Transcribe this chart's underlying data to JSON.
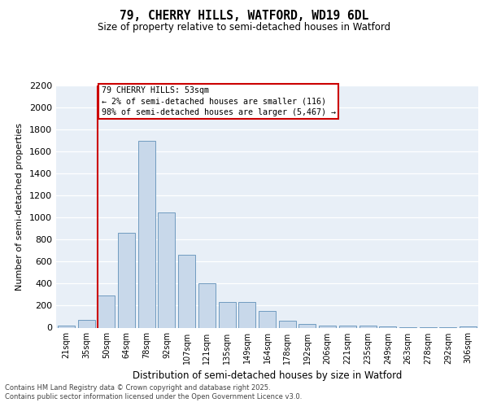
{
  "title1": "79, CHERRY HILLS, WATFORD, WD19 6DL",
  "title2": "Size of property relative to semi-detached houses in Watford",
  "xlabel": "Distribution of semi-detached houses by size in Watford",
  "ylabel": "Number of semi-detached properties",
  "bins": [
    "21sqm",
    "35sqm",
    "50sqm",
    "64sqm",
    "78sqm",
    "92sqm",
    "107sqm",
    "121sqm",
    "135sqm",
    "149sqm",
    "164sqm",
    "178sqm",
    "192sqm",
    "206sqm",
    "221sqm",
    "235sqm",
    "249sqm",
    "263sqm",
    "278sqm",
    "292sqm",
    "306sqm"
  ],
  "values": [
    20,
    70,
    290,
    860,
    1700,
    1050,
    660,
    400,
    230,
    230,
    155,
    65,
    30,
    20,
    15,
    15,
    10,
    5,
    2,
    2,
    10
  ],
  "bar_color": "#c8d8ea",
  "bar_edge_color": "#6090b8",
  "highlight_color": "#cc0000",
  "annotation_title": "79 CHERRY HILLS: 53sqm",
  "annotation_line1": "← 2% of semi-detached houses are smaller (116)",
  "annotation_line2": "98% of semi-detached houses are larger (5,467) →",
  "ylim": [
    0,
    2200
  ],
  "yticks": [
    0,
    200,
    400,
    600,
    800,
    1000,
    1200,
    1400,
    1600,
    1800,
    2000,
    2200
  ],
  "vline_x_index": 2,
  "footnote1": "Contains HM Land Registry data © Crown copyright and database right 2025.",
  "footnote2": "Contains public sector information licensed under the Open Government Licence v3.0.",
  "background_color": "#ffffff",
  "plot_bg_color": "#e8eff7"
}
